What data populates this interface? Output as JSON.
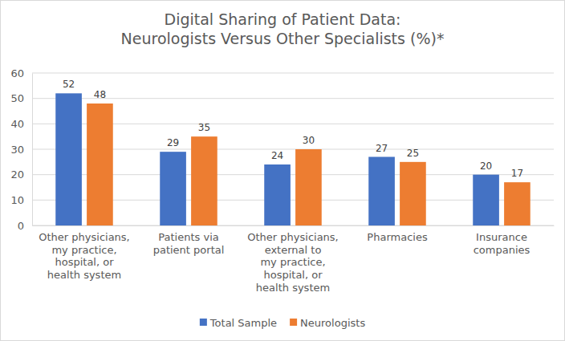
{
  "chart_data": {
    "type": "bar",
    "title": "Digital Sharing of Patient Data:\nNeurologists Versus Other Specialists (%)*",
    "categories": [
      "Other physicians,\nmy practice,\nhospital, or\nhealth system",
      "Patients via\npatient portal",
      "Other physicians,\nexternal to\nmy practice,\nhospital, or\nhealth system",
      "Pharmacies",
      "Insurance\ncompanies"
    ],
    "series": [
      {
        "name": "Total Sample",
        "color": "#4472c4",
        "values": [
          52,
          29,
          24,
          27,
          20
        ]
      },
      {
        "name": "Neurologists",
        "color": "#ed7d31",
        "values": [
          48,
          35,
          30,
          25,
          17
        ]
      }
    ],
    "ylim": [
      0,
      60
    ],
    "yticks": [
      0,
      10,
      20,
      30,
      40,
      50,
      60
    ],
    "grid": true,
    "data_labels": true,
    "legend": "bottom"
  }
}
